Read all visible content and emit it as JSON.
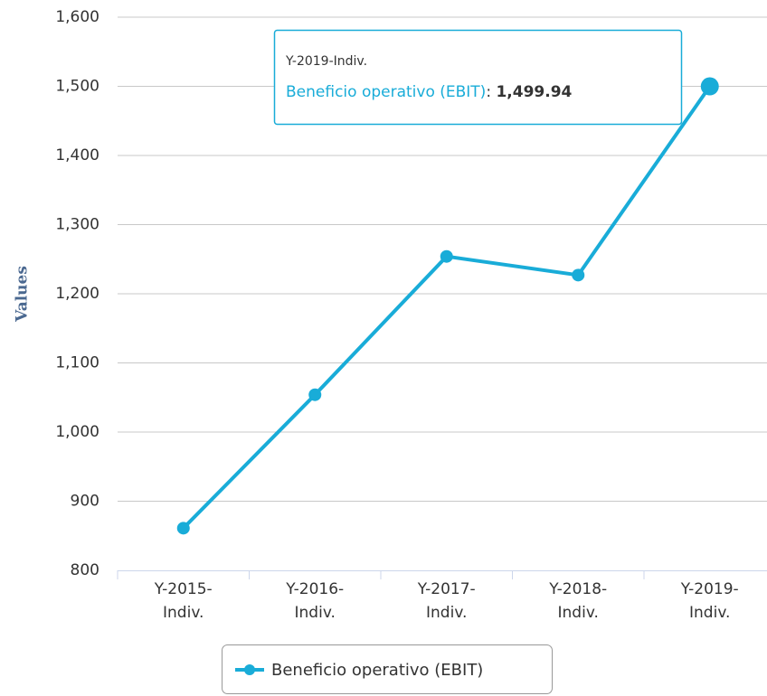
{
  "chart_data": {
    "type": "line",
    "y_axis_label": "Values",
    "categories": [
      "Y-2015-Indiv.",
      "Y-2016-Indiv.",
      "Y-2017-Indiv.",
      "Y-2018-Indiv.",
      "Y-2019-Indiv."
    ],
    "series": [
      {
        "name": "Beneficio operativo (EBIT)",
        "color": "#19acd8",
        "values": [
          861,
          1054,
          1254,
          1227,
          1499.94
        ],
        "value_labels": [
          null,
          null,
          null,
          null,
          "1,499.94"
        ]
      }
    ],
    "ylim": [
      800,
      1600
    ],
    "yticks": [
      800,
      900,
      {
        "value": 1000,
        "label": "1,000"
      },
      {
        "value": 1100,
        "label": "1,100"
      },
      {
        "value": 1200,
        "label": "1,200"
      },
      {
        "value": 1300,
        "label": "1,300"
      },
      {
        "value": 1400,
        "label": "1,400"
      },
      {
        "value": 1500,
        "label": "1,500"
      },
      {
        "value": 1600,
        "label": "1,600"
      }
    ],
    "grid": true,
    "legend": "bottom",
    "tooltip_index": 4
  }
}
